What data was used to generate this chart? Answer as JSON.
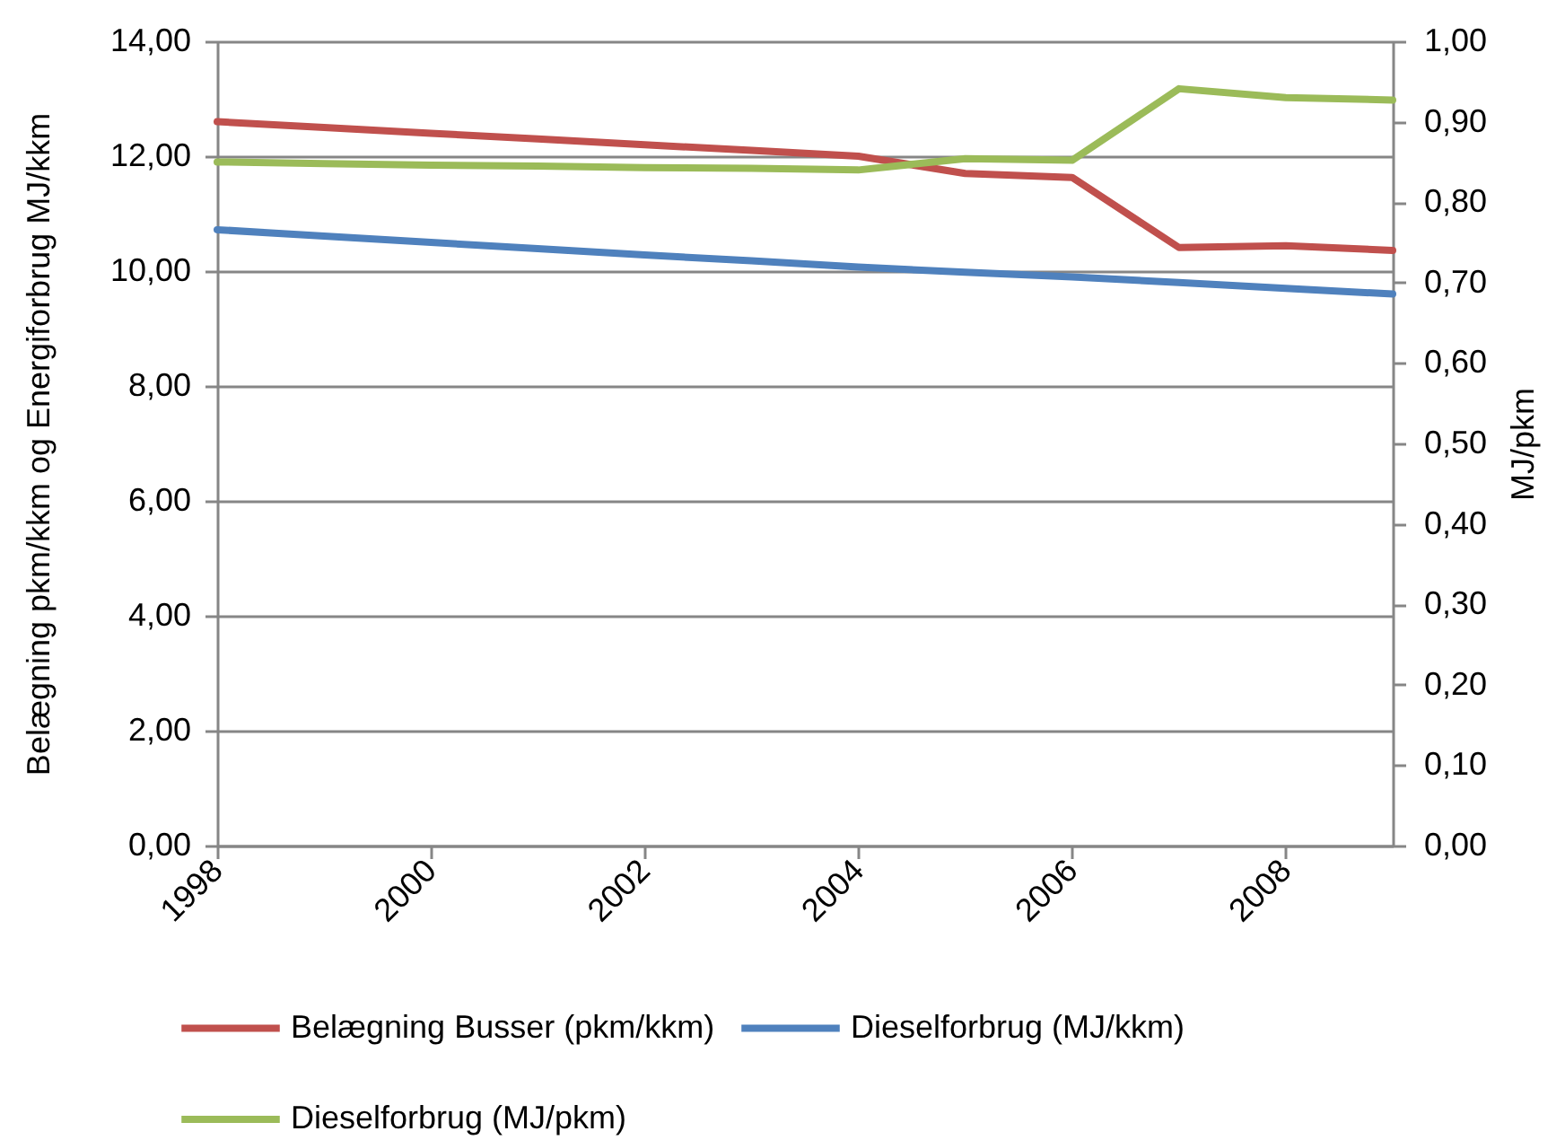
{
  "chart_data": {
    "type": "line",
    "x": [
      1998,
      1999,
      2000,
      2001,
      2002,
      2003,
      2004,
      2005,
      2006,
      2007,
      2008,
      2009
    ],
    "xlim": [
      1998,
      2009
    ],
    "xticks": [
      1998,
      2000,
      2002,
      2004,
      2006,
      2008
    ],
    "ylabel": "Belægning pkm/kkm og Energiforbrug MJ/kkm",
    "y2label": "MJ/pkm",
    "ylim": [
      0,
      14
    ],
    "yticks": [
      {
        "value": 0,
        "label": "0,00"
      },
      {
        "value": 2,
        "label": "2,00"
      },
      {
        "value": 4,
        "label": "4,00"
      },
      {
        "value": 6,
        "label": "6,00"
      },
      {
        "value": 8,
        "label": "8,00"
      },
      {
        "value": 10,
        "label": "10,00"
      },
      {
        "value": 12,
        "label": "12,00"
      },
      {
        "value": 14,
        "label": "14,00"
      }
    ],
    "y2lim": [
      0,
      1
    ],
    "y2ticks": [
      {
        "value": 0,
        "label": "0,00"
      },
      {
        "value": 0.1,
        "label": "0,10"
      },
      {
        "value": 0.2,
        "label": "0,20"
      },
      {
        "value": 0.3,
        "label": "0,30"
      },
      {
        "value": 0.4,
        "label": "0,40"
      },
      {
        "value": 0.5,
        "label": "0,50"
      },
      {
        "value": 0.6,
        "label": "0,60"
      },
      {
        "value": 0.7,
        "label": "0,70"
      },
      {
        "value": 0.8,
        "label": "0,80"
      },
      {
        "value": 0.9,
        "label": "0,90"
      },
      {
        "value": 1,
        "label": "1,00"
      }
    ],
    "grid": "y",
    "legend": "bottom",
    "line_style": "solid",
    "series": [
      {
        "name": "Belægning Busser (pkm/kkm)",
        "color": "#c0504d",
        "values": [
          12.6,
          12.5,
          12.4,
          12.3,
          12.2,
          12.1,
          12.0,
          11.7,
          11.63,
          10.41,
          10.44,
          10.36
        ]
      },
      {
        "name": "Dieselforbrug (MJ/kkm)",
        "color": "#4f81bd",
        "values": [
          10.72,
          10.61,
          10.5,
          10.39,
          10.28,
          10.18,
          10.07,
          9.98,
          9.9,
          9.8,
          9.7,
          9.6
        ]
      },
      {
        "name": "Dieselforbrug (MJ/pkm)",
        "color": "#9bbb59",
        "axis": "y2",
        "values": [
          0.85,
          0.848,
          0.846,
          0.845,
          0.843,
          0.842,
          0.84,
          0.854,
          0.852,
          0.941,
          0.93,
          0.927
        ]
      }
    ]
  }
}
